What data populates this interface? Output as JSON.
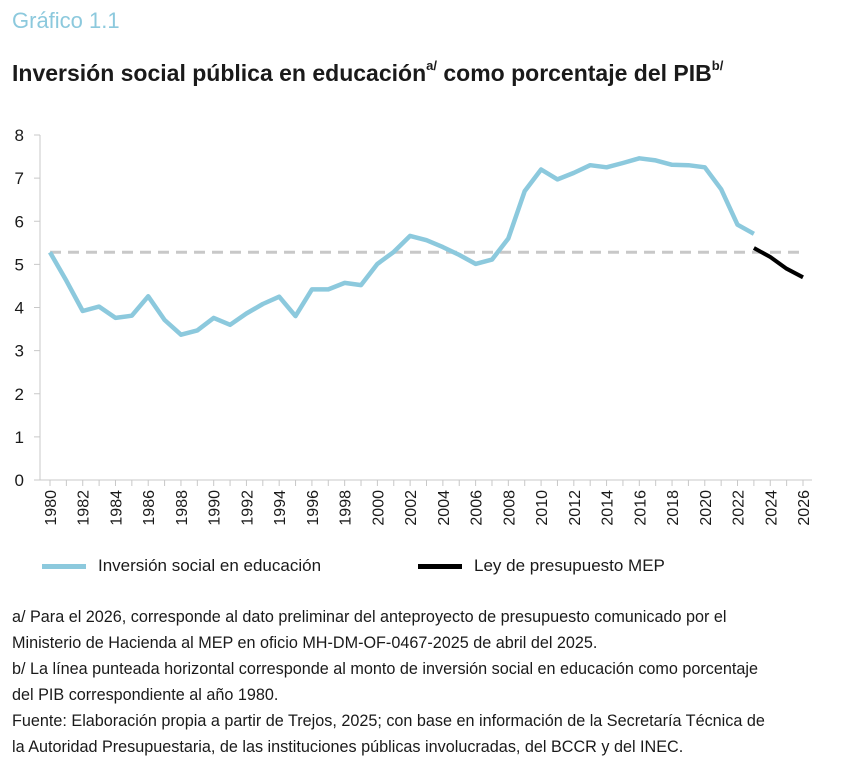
{
  "header": {
    "label": "Gráfico 1.1",
    "title_part1": "Inversión social pública en educación",
    "title_sup1": "a/",
    "title_part2": " como porcentaje del PIB",
    "title_sup2": "b/"
  },
  "chart_data": {
    "type": "line",
    "ylim": [
      0,
      8
    ],
    "yticks": [
      0,
      1,
      2,
      3,
      4,
      5,
      6,
      7,
      8
    ],
    "xlim": [
      1980,
      2026
    ],
    "xticks": [
      "1980",
      "1982",
      "1984",
      "1986",
      "1988",
      "1990",
      "1992",
      "1994",
      "1996",
      "1998",
      "2000",
      "2002",
      "2004",
      "2006",
      "2008",
      "2010",
      "2012",
      "2014",
      "2016",
      "2018",
      "2020",
      "2022",
      "2024",
      "2026"
    ],
    "series": [
      {
        "name": "Inversión social en educación",
        "color": "#8cc9dd",
        "x": [
          1980,
          1981,
          1982,
          1983,
          1984,
          1985,
          1986,
          1987,
          1988,
          1989,
          1990,
          1991,
          1992,
          1993,
          1994,
          1995,
          1996,
          1997,
          1998,
          1999,
          2000,
          2001,
          2002,
          2003,
          2004,
          2005,
          2006,
          2007,
          2008,
          2009,
          2010,
          2011,
          2012,
          2013,
          2014,
          2015,
          2016,
          2017,
          2018,
          2019,
          2020,
          2021,
          2022,
          2023
        ],
        "values": [
          5.28,
          4.62,
          3.92,
          4.02,
          3.76,
          3.81,
          4.26,
          3.71,
          3.37,
          3.47,
          3.76,
          3.6,
          3.86,
          4.08,
          4.25,
          3.8,
          4.42,
          4.42,
          4.57,
          4.52,
          5.01,
          5.29,
          5.66,
          5.56,
          5.4,
          5.22,
          5.01,
          5.11,
          5.6,
          6.7,
          7.2,
          6.97,
          7.12,
          7.3,
          7.25,
          7.35,
          7.46,
          7.41,
          7.31,
          7.3,
          7.25,
          6.74,
          5.92,
          5.71
        ]
      },
      {
        "name": "Ley de presupuesto MEP",
        "color": "#000000",
        "x": [
          2023,
          2024,
          2025,
          2026
        ],
        "values": [
          5.38,
          5.17,
          4.9,
          4.7
        ]
      }
    ],
    "reference_line": {
      "value": 5.28,
      "color": "#c8c8c8",
      "style": "dashed"
    }
  },
  "legend": [
    {
      "label": "Inversión social en educación",
      "color": "#8cc9dd"
    },
    {
      "label": "Ley de presupuesto MEP",
      "color": "#000000"
    }
  ],
  "notes": [
    "a/ Para el 2026, corresponde al dato preliminar del anteproyecto de presupuesto comunicado por el",
    "Ministerio de Hacienda al MEP en oficio MH-DM-OF-0467-2025 de abril del 2025.",
    "b/ La línea punteada horizontal corresponde al monto de inversión social en educación como porcentaje",
    "del PIB correspondiente al año 1980.",
    "Fuente: Elaboración propia a partir de Trejos, 2025; con base en información de la Secretaría Técnica de",
    "la Autoridad Presupuestaria, de las instituciones públicas involucradas, del BCCR y del INEC."
  ]
}
